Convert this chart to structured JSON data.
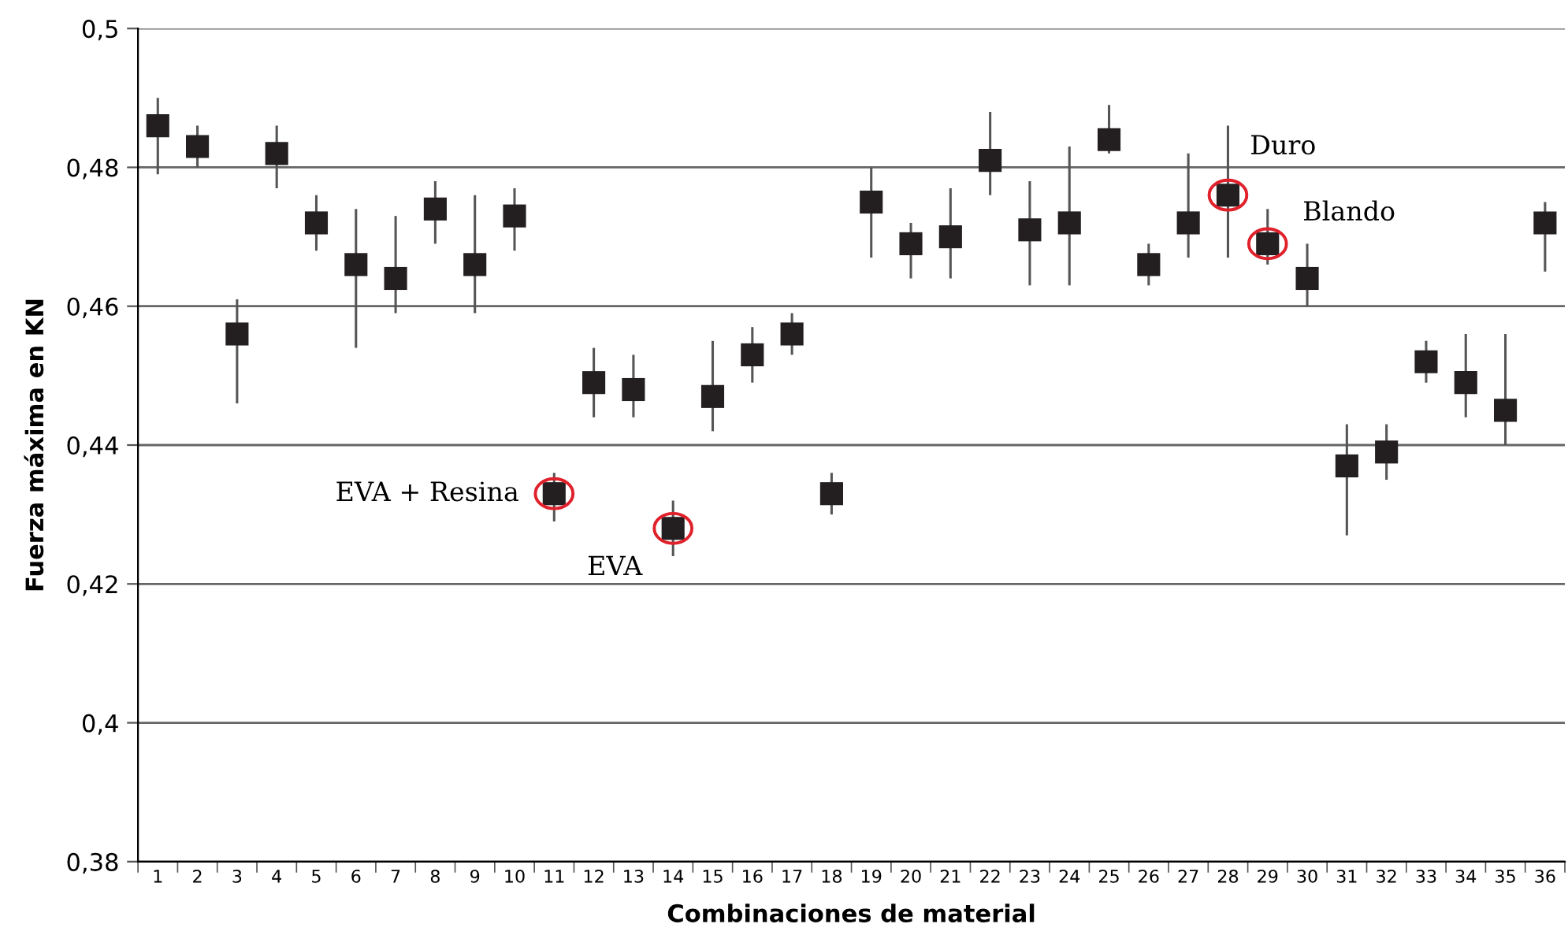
{
  "chart_data": {
    "type": "scatter",
    "categories": [
      "1",
      "2",
      "3",
      "4",
      "5",
      "6",
      "7",
      "8",
      "9",
      "10",
      "11",
      "12",
      "13",
      "14",
      "15",
      "16",
      "17",
      "18",
      "19",
      "20",
      "21",
      "22",
      "23",
      "24",
      "25",
      "26",
      "27",
      "28",
      "29",
      "30",
      "31",
      "32",
      "33",
      "34",
      "35",
      "36"
    ],
    "values": [
      0.486,
      0.483,
      0.456,
      0.482,
      0.472,
      0.466,
      0.464,
      0.474,
      0.466,
      0.473,
      0.433,
      0.449,
      0.448,
      0.428,
      0.447,
      0.453,
      0.456,
      0.433,
      0.475,
      0.469,
      0.47,
      0.481,
      0.471,
      0.472,
      0.484,
      0.466,
      0.472,
      0.476,
      0.469,
      0.464,
      0.437,
      0.439,
      0.452,
      0.449,
      0.445,
      0.472
    ],
    "errors": [
      [
        0.479,
        0.49
      ],
      [
        0.48,
        0.486
      ],
      [
        0.446,
        0.461
      ],
      [
        0.477,
        0.486
      ],
      [
        0.468,
        0.476
      ],
      [
        0.454,
        0.474
      ],
      [
        0.459,
        0.473
      ],
      [
        0.469,
        0.478
      ],
      [
        0.459,
        0.476
      ],
      [
        0.468,
        0.477
      ],
      [
        0.429,
        0.436
      ],
      [
        0.444,
        0.454
      ],
      [
        0.444,
        0.453
      ],
      [
        0.424,
        0.432
      ],
      [
        0.442,
        0.455
      ],
      [
        0.449,
        0.457
      ],
      [
        0.453,
        0.459
      ],
      [
        0.43,
        0.436
      ],
      [
        0.467,
        0.48
      ],
      [
        0.464,
        0.472
      ],
      [
        0.464,
        0.477
      ],
      [
        0.476,
        0.488
      ],
      [
        0.463,
        0.478
      ],
      [
        0.463,
        0.483
      ],
      [
        0.482,
        0.489
      ],
      [
        0.463,
        0.469
      ],
      [
        0.467,
        0.482
      ],
      [
        0.467,
        0.486
      ],
      [
        0.466,
        0.474
      ],
      [
        0.46,
        0.469
      ],
      [
        0.427,
        0.443
      ],
      [
        0.435,
        0.443
      ],
      [
        0.449,
        0.455
      ],
      [
        0.444,
        0.456
      ],
      [
        0.44,
        0.456
      ],
      [
        0.465,
        0.475
      ]
    ],
    "color": "#231f20",
    "marker": "square",
    "xlabel": "Combinaciones de material",
    "ylabel": "Fuerza máxima en KN",
    "ylim": [
      0.38,
      0.5
    ],
    "yticks": [
      {
        "value": 0.38,
        "label": "0,38"
      },
      {
        "value": 0.4,
        "label": "0,4"
      },
      {
        "value": 0.42,
        "label": "0,42"
      },
      {
        "value": 0.44,
        "label": "0,44"
      },
      {
        "value": 0.46,
        "label": "0,46"
      },
      {
        "value": 0.48,
        "label": "0,48"
      },
      {
        "value": 0.5,
        "label": "0,5"
      }
    ],
    "grid": "y",
    "annotations": [
      {
        "text": "EVA + Resina",
        "x": "11",
        "y": 0.433
      },
      {
        "text": "EVA",
        "x": "14",
        "y": 0.428
      },
      {
        "text": "Duro",
        "x": "28",
        "y": 0.476
      },
      {
        "text": "Blando",
        "x": "29",
        "y": 0.469
      }
    ]
  }
}
